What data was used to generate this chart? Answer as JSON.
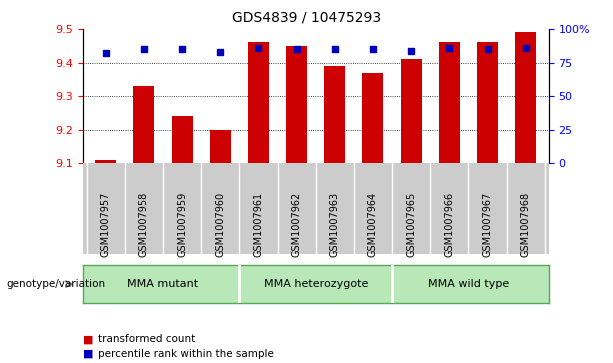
{
  "title": "GDS4839 / 10475293",
  "samples": [
    "GSM1007957",
    "GSM1007958",
    "GSM1007959",
    "GSM1007960",
    "GSM1007961",
    "GSM1007962",
    "GSM1007963",
    "GSM1007964",
    "GSM1007965",
    "GSM1007966",
    "GSM1007967",
    "GSM1007968"
  ],
  "transformed_count": [
    9.11,
    9.33,
    9.24,
    9.2,
    9.46,
    9.45,
    9.39,
    9.37,
    9.41,
    9.46,
    9.46,
    9.49
  ],
  "percentile_rank": [
    82,
    85,
    85,
    83,
    86,
    85,
    85,
    85,
    84,
    86,
    85,
    86
  ],
  "ylim_left": [
    9.1,
    9.5
  ],
  "ylim_right": [
    0,
    100
  ],
  "yticks_left": [
    9.1,
    9.2,
    9.3,
    9.4,
    9.5
  ],
  "yticks_right": [
    0,
    25,
    50,
    75,
    100
  ],
  "groups": [
    {
      "label": "MMA mutant",
      "start": 0,
      "end": 4
    },
    {
      "label": "MMA heterozygote",
      "start": 4,
      "end": 8
    },
    {
      "label": "MMA wild type",
      "start": 8,
      "end": 12
    }
  ],
  "bar_color": "#CC0000",
  "dot_color": "#0000BB",
  "bar_bottom": 9.1,
  "group_bg_light": "#b8e8b8",
  "group_bg_dark": "#6abf6a",
  "sample_bg": "#cccccc",
  "legend_red_label": "transformed count",
  "legend_blue_label": "percentile rank within the sample",
  "genotype_label": "genotype/variation"
}
